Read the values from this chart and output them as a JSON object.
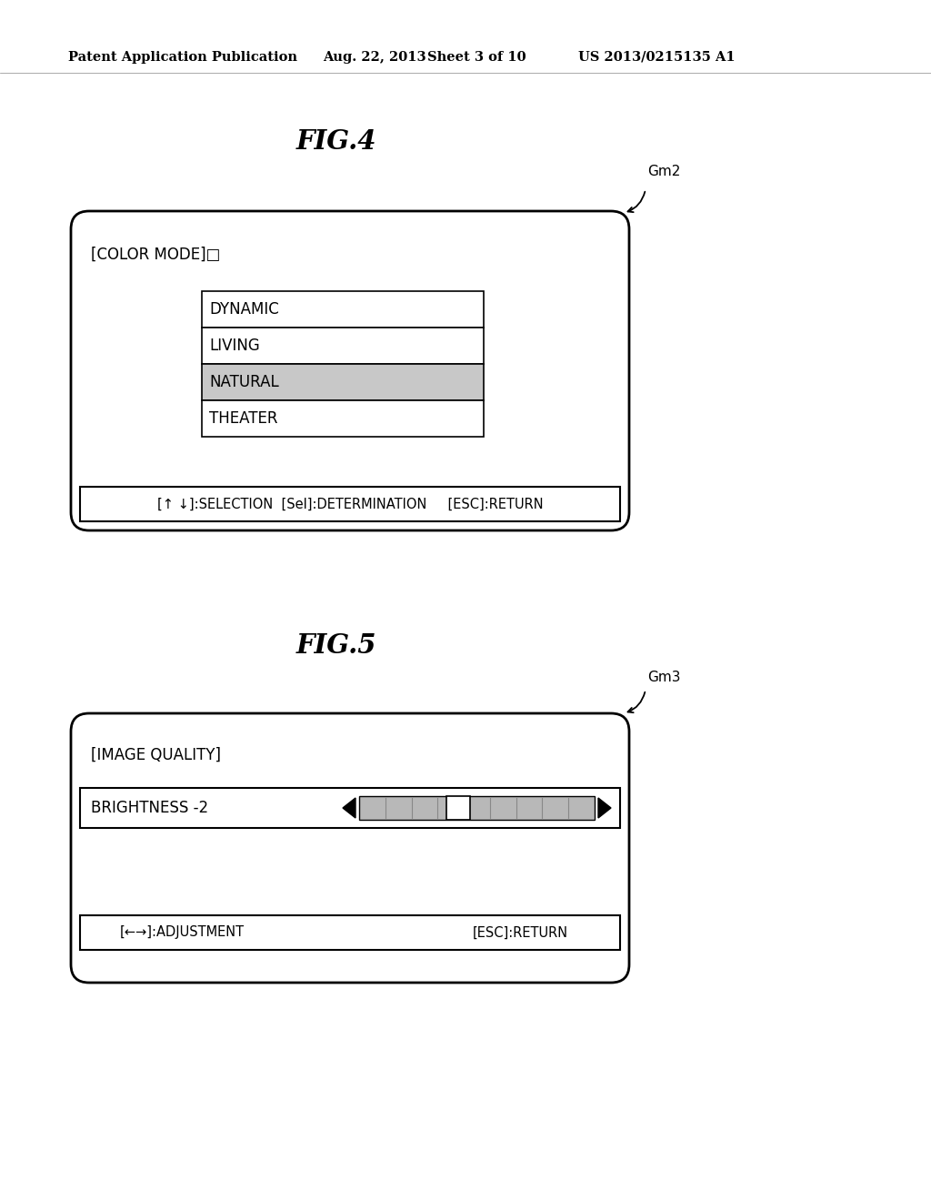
{
  "bg_color": "#ffffff",
  "header_text": "Patent Application Publication",
  "header_date": "Aug. 22, 2013",
  "header_sheet": "Sheet 3 of 10",
  "header_patent": "US 2013/0215135 A1",
  "fig4_title": "FIG.4",
  "fig4_label": "Gm2",
  "fig4_color_mode_text": "[COLOR MODE]□",
  "fig4_items": [
    "DYNAMIC",
    "LIVING",
    "NATURAL",
    "THEATER"
  ],
  "fig4_selected_index": 2,
  "fig4_footer": "[↑ ↓]:SELECTION  [Sel]:DETERMINATION     [ESC]:RETURN",
  "fig5_title": "FIG.5",
  "fig5_label": "Gm3",
  "fig5_image_quality": "[IMAGE QUALITY]",
  "fig5_brightness_label": "BRIGHTNESS -2",
  "fig5_footer_left": "[←→]:ADJUSTMENT",
  "fig5_footer_right": "[ESC]:RETURN",
  "selected_bg": "#c8c8c8",
  "list_bg": "#ffffff",
  "border_color": "#000000",
  "text_color": "#000000",
  "header_fontsize": 10.5,
  "fig_title_fontsize": 21,
  "label_fontsize": 11,
  "item_fontsize": 12,
  "footer_fontsize": 10.5
}
